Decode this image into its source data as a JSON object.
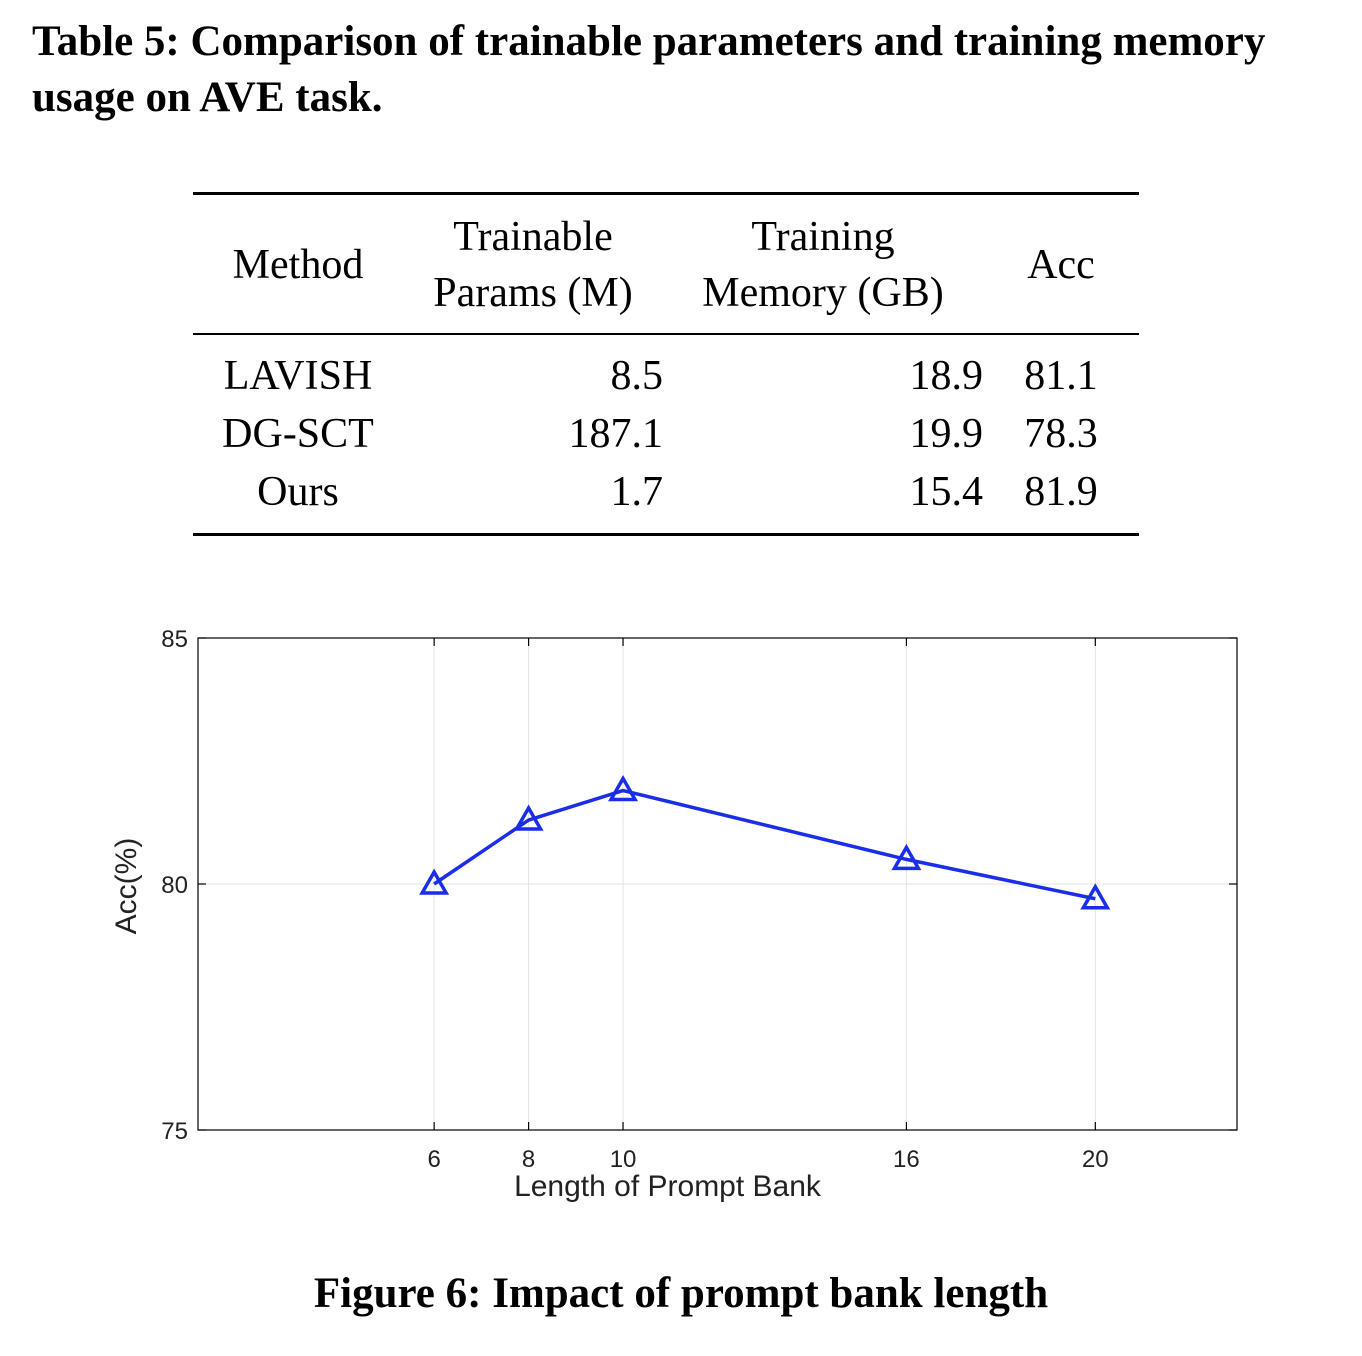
{
  "table_caption": "Table 5: Comparison of trainable parameters and training memory usage on AVE task.",
  "table": {
    "headers": {
      "method": "Method",
      "params_line1": "Trainable",
      "params_line2": "Params (M)",
      "memory_line1": "Training",
      "memory_line2": "Memory (GB)",
      "acc": "Acc"
    },
    "rows": [
      {
        "method": "LAVISH",
        "params": "8.5",
        "memory": "18.9",
        "acc": "81.1"
      },
      {
        "method": "DG-SCT",
        "params": "187.1",
        "memory": "19.9",
        "acc": "78.3"
      },
      {
        "method": "Ours",
        "params": "1.7",
        "memory": "15.4",
        "acc": "81.9"
      }
    ]
  },
  "chart_data": {
    "type": "line",
    "title": "",
    "xlabel": "Length of Prompt Bank",
    "ylabel": "Acc(%)",
    "xlim": [
      1,
      23
    ],
    "ylim": [
      75,
      85
    ],
    "xticks": [
      6,
      8,
      10,
      16,
      20
    ],
    "yticks": [
      75,
      80,
      85
    ],
    "grid": true,
    "x": [
      6,
      8,
      10,
      16,
      20
    ],
    "series": [
      {
        "values": [
          80.0,
          81.3,
          81.9,
          80.5,
          79.7
        ],
        "color": "#1a2ee8",
        "marker": "triangle"
      }
    ]
  },
  "figure_caption": "Figure 6: Impact of prompt bank length"
}
